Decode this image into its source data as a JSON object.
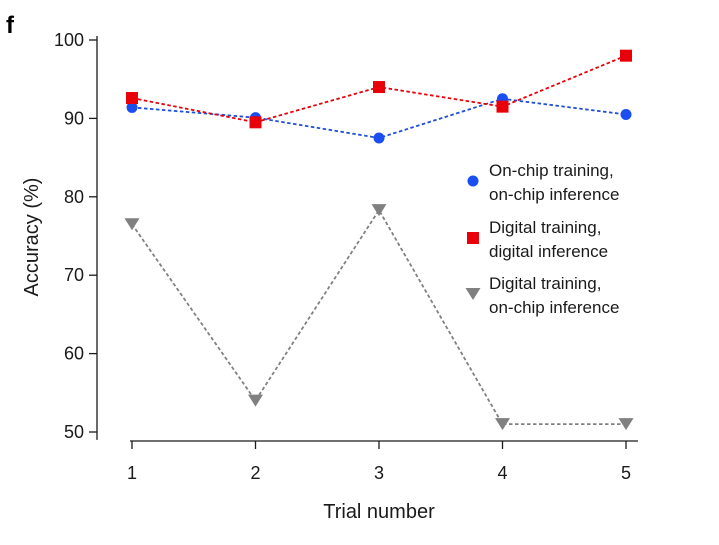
{
  "panel_label": "f",
  "chart_data": {
    "type": "line",
    "title": "",
    "xlabel": "Trial number",
    "ylabel": "Accuracy (%)",
    "x": [
      1,
      2,
      3,
      4,
      5
    ],
    "xticks": [
      "1",
      "2",
      "3",
      "4",
      "5"
    ],
    "yticks": [
      "50",
      "60",
      "70",
      "80",
      "90",
      "100"
    ],
    "xlim": [
      0.8,
      5.1
    ],
    "ylim": [
      49,
      100
    ],
    "grid": false,
    "legend_position": "right",
    "series": [
      {
        "name": "On-chip training, on-chip inference",
        "legend_lines": [
          "On-chip training,",
          "on-chip inference"
        ],
        "values": [
          91.4,
          90.1,
          87.5,
          92.5,
          90.5
        ],
        "color": "#1a4ef0",
        "line_color": "#1f4fd8",
        "marker": "circle"
      },
      {
        "name": "Digital training, digital inference",
        "legend_lines": [
          "Digital training,",
          "digital inference"
        ],
        "values": [
          92.6,
          89.5,
          94.0,
          91.5,
          98.0
        ],
        "color": "#e8000b",
        "line_color": "#e8000b",
        "marker": "square"
      },
      {
        "name": "Digital training, on-chip inference",
        "legend_lines": [
          "Digital training,",
          "on-chip inference"
        ],
        "values": [
          76.5,
          54.0,
          78.3,
          51.0,
          51.0
        ],
        "color": "#808080",
        "line_color": "#808080",
        "marker": "triangle-down"
      }
    ]
  }
}
